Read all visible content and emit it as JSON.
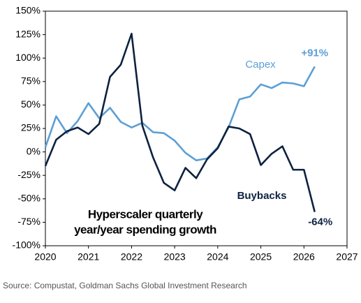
{
  "chart_data": {
    "type": "line",
    "title_lines": [
      "Hyperscaler quarterly",
      "year/year spending growth"
    ],
    "source": "Source: Compustat, Goldman Sachs Global Investment Research",
    "x": [
      2020,
      2020.25,
      2020.5,
      2020.75,
      2021,
      2021.25,
      2021.5,
      2021.75,
      2022,
      2022.25,
      2022.5,
      2022.75,
      2023,
      2023.25,
      2023.5,
      2023.75,
      2024,
      2024.25,
      2024.5,
      2024.75,
      2025,
      2025.25,
      2025.5,
      2025.75,
      2026,
      2026.25
    ],
    "series": [
      {
        "name": "Capex",
        "color": "#5b9fd6",
        "values": [
          5,
          38,
          20,
          33,
          52,
          36,
          47,
          32,
          26,
          31,
          21,
          20,
          12,
          -1,
          -9,
          -7,
          5,
          26,
          56,
          59,
          72,
          68,
          74,
          73,
          70,
          91
        ],
        "value_labels": [
          null,
          null,
          null,
          null,
          null,
          null,
          null,
          null,
          null,
          null,
          null,
          null,
          null,
          null,
          null,
          null,
          null,
          null,
          null,
          null,
          null,
          null,
          null,
          null,
          null,
          "+91%"
        ]
      },
      {
        "name": "Buybacks",
        "color": "#0d2240",
        "values": [
          -15,
          13,
          22,
          26,
          19,
          30,
          80,
          93,
          126,
          28,
          -6,
          -33,
          -41,
          -17,
          -28,
          -8,
          4,
          27,
          25,
          19,
          -14,
          -2,
          6,
          -19,
          -19,
          -64
        ],
        "value_labels": [
          null,
          null,
          null,
          null,
          null,
          null,
          null,
          null,
          null,
          null,
          null,
          null,
          null,
          null,
          null,
          null,
          null,
          null,
          null,
          null,
          null,
          null,
          null,
          null,
          null,
          "-64%"
        ]
      }
    ],
    "xlim": [
      2020,
      2027
    ],
    "xticks": [
      2020,
      2021,
      2022,
      2023,
      2024,
      2025,
      2026,
      2027
    ],
    "ylim": [
      -100,
      150
    ],
    "yticks": [
      {
        "value": -100,
        "label": "-100%"
      },
      {
        "value": -75,
        "label": "-75%"
      },
      {
        "value": -50,
        "label": "-50%"
      },
      {
        "value": -25,
        "label": "-25%"
      },
      {
        "value": 0,
        "label": "0%"
      },
      {
        "value": 25,
        "label": "25%"
      },
      {
        "value": 50,
        "label": "50%"
      },
      {
        "value": 75,
        "label": "75%"
      },
      {
        "value": 100,
        "label": "100%"
      },
      {
        "value": 125,
        "label": "125%"
      },
      {
        "value": 150,
        "label": "150%"
      }
    ],
    "grid": false
  }
}
